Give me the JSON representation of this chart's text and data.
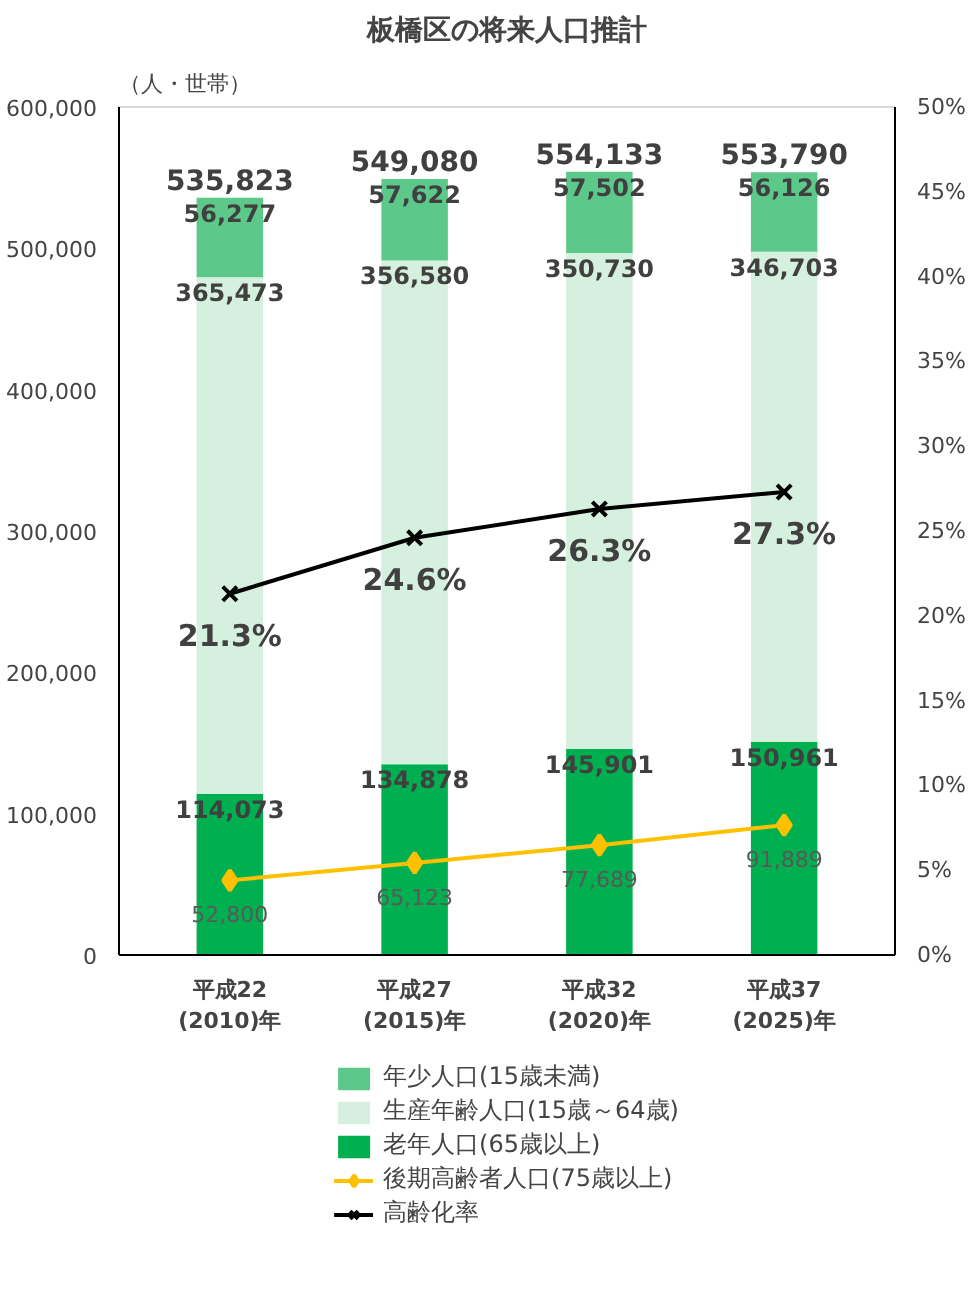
{
  "chart_data": {
    "type": "bar",
    "title": "板橋区の将来人口推計",
    "ylabel": "（人・世帯）",
    "categories": [
      "平成22\n(2010)年",
      "平成27\n(2015)年",
      "平成32\n(2020)年",
      "平成37\n(2025)年"
    ],
    "stacked": true,
    "legend": "bottom",
    "grid": false,
    "ylim": [
      0,
      600000
    ],
    "yticks": [
      {
        "value": 0,
        "label": "0"
      },
      {
        "value": 100000,
        "label": "100,000"
      },
      {
        "value": 200000,
        "label": "200,000"
      },
      {
        "value": 300000,
        "label": "300,000"
      },
      {
        "value": 400000,
        "label": "400,000"
      },
      {
        "value": 500000,
        "label": "500,000"
      },
      {
        "value": 600000,
        "label": "600,000"
      }
    ],
    "y2lim": [
      0,
      50
    ],
    "y2ticks": [
      {
        "value": 0,
        "label": "0%"
      },
      {
        "value": 5,
        "label": "5%"
      },
      {
        "value": 10,
        "label": "10%"
      },
      {
        "value": 15,
        "label": "15%"
      },
      {
        "value": 20,
        "label": "20%"
      },
      {
        "value": 25,
        "label": "25%"
      },
      {
        "value": 30,
        "label": "30%"
      },
      {
        "value": 35,
        "label": "35%"
      },
      {
        "value": 40,
        "label": "40%"
      },
      {
        "value": 45,
        "label": "45%"
      },
      {
        "value": 50,
        "label": "50%"
      }
    ],
    "totals": [
      "535,823",
      "549,080",
      "554,133",
      "553,790"
    ],
    "series": [
      {
        "name": "老年人口(65歳以上)",
        "color": "#00b050",
        "values": [
          114073,
          134878,
          145901,
          150961
        ],
        "value_labels": [
          "114,073",
          "134,878",
          "145,901",
          "150,961"
        ]
      },
      {
        "name": "生産年齢人口(15歳～64歳)",
        "color": "#d6f0df",
        "values": [
          365473,
          356580,
          350730,
          346703
        ],
        "value_labels": [
          "365,473",
          "356,580",
          "350,730",
          "346,703"
        ]
      },
      {
        "name": "年少人口(15歳未満)",
        "color": "#5cc98a",
        "values": [
          56277,
          57622,
          57502,
          56126
        ],
        "value_labels": [
          "56,277",
          "57,622",
          "57,502",
          "56,126"
        ]
      },
      {
        "name": "後期高齢者人口(75歳以上)",
        "type": "line",
        "color": "#ffc000",
        "marker": "diamond",
        "values": [
          52800,
          65123,
          77689,
          91889
        ],
        "value_labels": [
          "52,800",
          "65,123",
          "77,689",
          "91,889"
        ]
      },
      {
        "name": "高齢化率",
        "type": "line",
        "color": "#000000",
        "marker": "cross",
        "axis": "y2",
        "values": [
          21.3,
          24.6,
          26.3,
          27.3
        ],
        "value_labels": [
          "21.3%",
          "24.6%",
          "26.3%",
          "27.3%"
        ]
      }
    ]
  }
}
